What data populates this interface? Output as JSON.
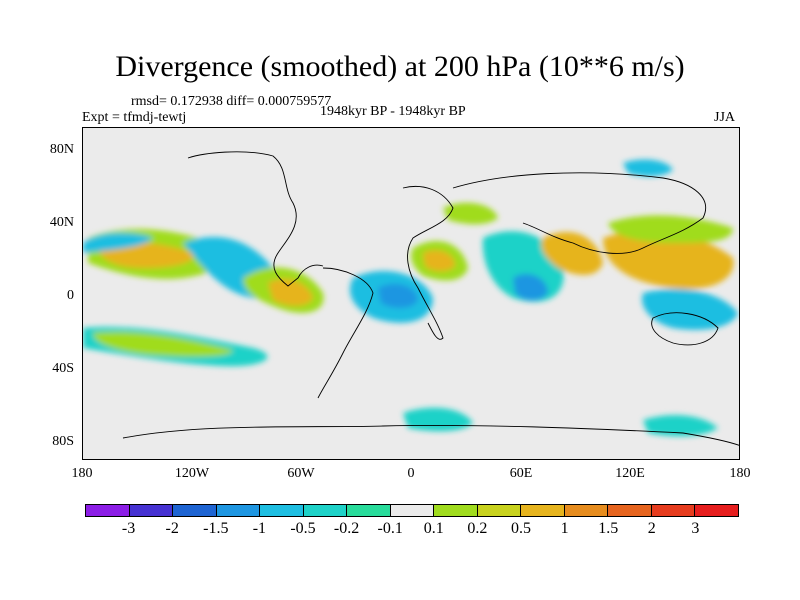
{
  "header": {
    "title": "Divergence (smoothed) at 200 hPa (10**6 m/s)",
    "stats": "rmsd= 0.172938 diff= 0.000759577",
    "experiment": "Expt = tfmdj-tewtj",
    "period": "1948kyr BP - 1948kyr BP",
    "season": "JJA"
  },
  "axes": {
    "lat_labels": [
      "80N",
      "40N",
      "0",
      "40S",
      "80S"
    ],
    "lon_labels": [
      "180",
      "120W",
      "60W",
      "0",
      "60E",
      "120E",
      "180"
    ]
  },
  "colorbar": {
    "labels": [
      "-3",
      "-2",
      "-1.5",
      "-1",
      "-0.5",
      "-0.2",
      "-0.1",
      "0.1",
      "0.2",
      "0.5",
      "1",
      "1.5",
      "2",
      "3"
    ],
    "colors": [
      "#8c1ee6",
      "#4632d2",
      "#1e64d2",
      "#1e96e1",
      "#1ebee1",
      "#1ed2c8",
      "#28dc9b",
      "#ebebeb",
      "#a0dc1e",
      "#c8d21e",
      "#e6b41e",
      "#e68c1e",
      "#e6641e",
      "#e63c1e",
      "#e61e1e"
    ]
  }
}
